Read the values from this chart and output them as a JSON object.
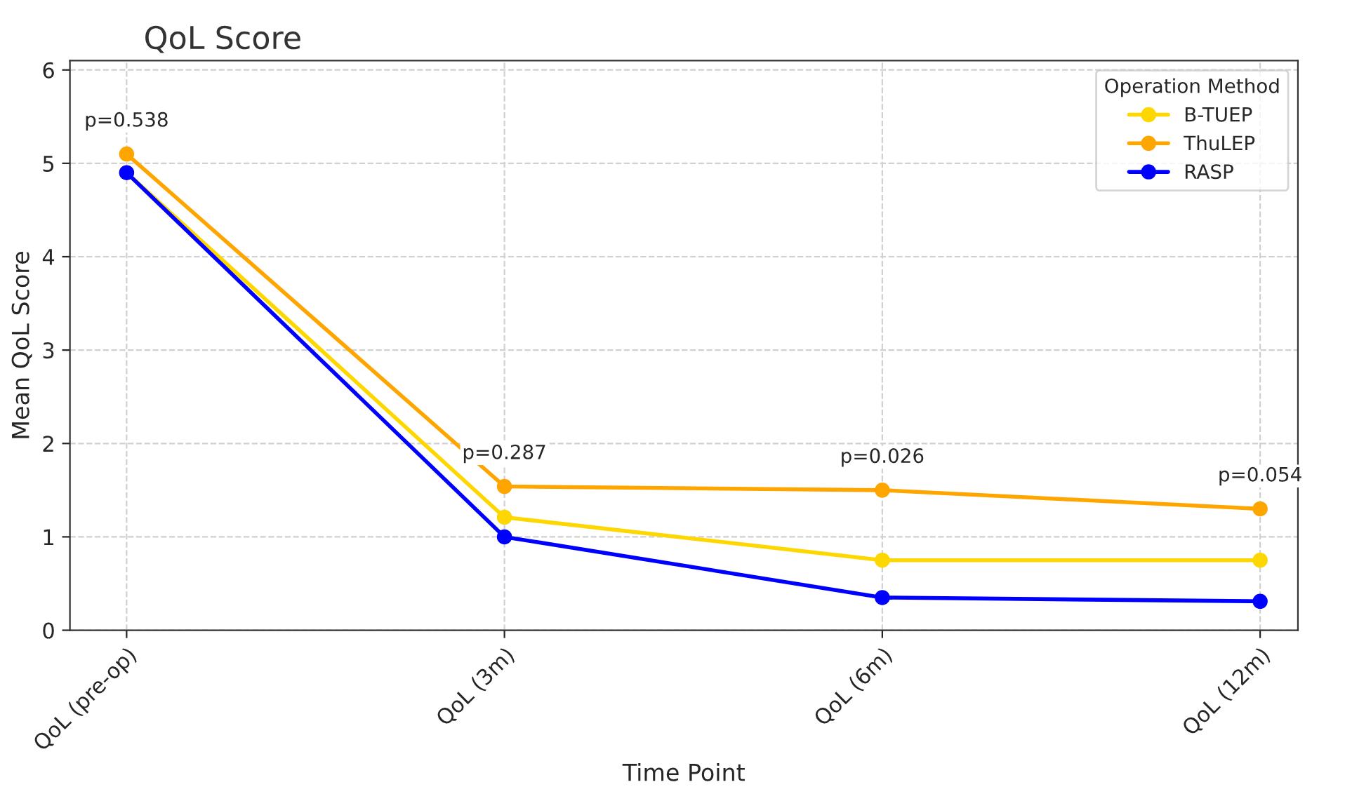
{
  "chart_data": {
    "type": "line",
    "title": "QoL Score",
    "xlabel": "Time Point",
    "ylabel": "Mean QoL Score",
    "legend_title": "Operation Method",
    "categories": [
      "QoL (pre-op)",
      "QoL (3m)",
      "QoL (6m)",
      "QoL (12m)"
    ],
    "series": [
      {
        "name": "B-TUEP",
        "color": "#ffd700",
        "values": [
          4.9,
          1.21,
          0.75,
          0.75
        ]
      },
      {
        "name": "ThuLEP",
        "color": "#ffa500",
        "values": [
          5.1,
          1.54,
          1.5,
          1.3
        ]
      },
      {
        "name": "RASP",
        "color": "#0000ff",
        "values": [
          4.9,
          1.0,
          0.35,
          0.31
        ]
      }
    ],
    "annotations": [
      "p=0.538",
      "p=0.287",
      "p=0.026",
      "p=0.054"
    ],
    "ylim": [
      0,
      6.1
    ],
    "yticks": [
      0,
      1,
      2,
      3,
      4,
      5,
      6
    ],
    "grid": true,
    "legend": "top right",
    "marker": "circle",
    "line_style": "solid"
  }
}
